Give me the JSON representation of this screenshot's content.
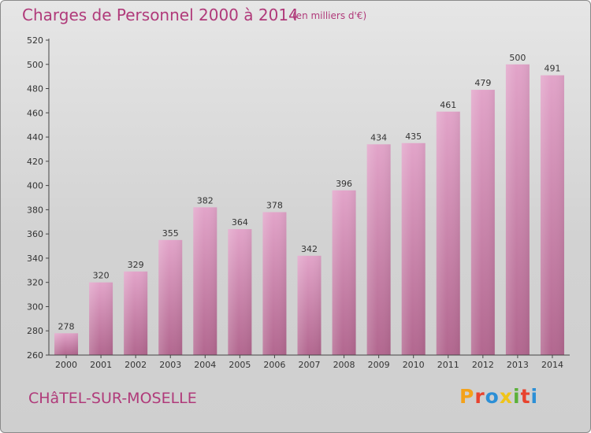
{
  "header": {
    "title": "Charges de Personnel 2000 à 2014",
    "subtitle": "(en milliers d'€)"
  },
  "footer": {
    "commune": "CHâTEL-SUR-MOSELLE",
    "brand": "Proxiti",
    "brand_colors": [
      "#f4a21a",
      "#e8432e",
      "#2c8fd6",
      "#f0c419",
      "#5bb13a",
      "#e8432e",
      "#2c8fd6"
    ]
  },
  "colors": {
    "bar_top": "#e2a4c9",
    "bar_bottom": "#b2678f",
    "axis": "#444444",
    "title": "#b03a7a"
  },
  "chart_data": {
    "type": "bar",
    "title": "Charges de Personnel 2000 à 2014",
    "subtitle": "(en milliers d'€)",
    "xlabel": "",
    "ylabel": "",
    "categories": [
      "2000",
      "2001",
      "2002",
      "2003",
      "2004",
      "2005",
      "2006",
      "2007",
      "2008",
      "2009",
      "2010",
      "2011",
      "2012",
      "2013",
      "2014"
    ],
    "values": [
      278,
      320,
      329,
      355,
      382,
      364,
      378,
      342,
      396,
      434,
      435,
      461,
      479,
      500,
      491
    ],
    "ylim": [
      260,
      520
    ],
    "yticks": [
      260,
      280,
      300,
      320,
      340,
      360,
      380,
      400,
      420,
      440,
      460,
      480,
      500,
      520
    ],
    "grid": false,
    "data_labels": true
  }
}
